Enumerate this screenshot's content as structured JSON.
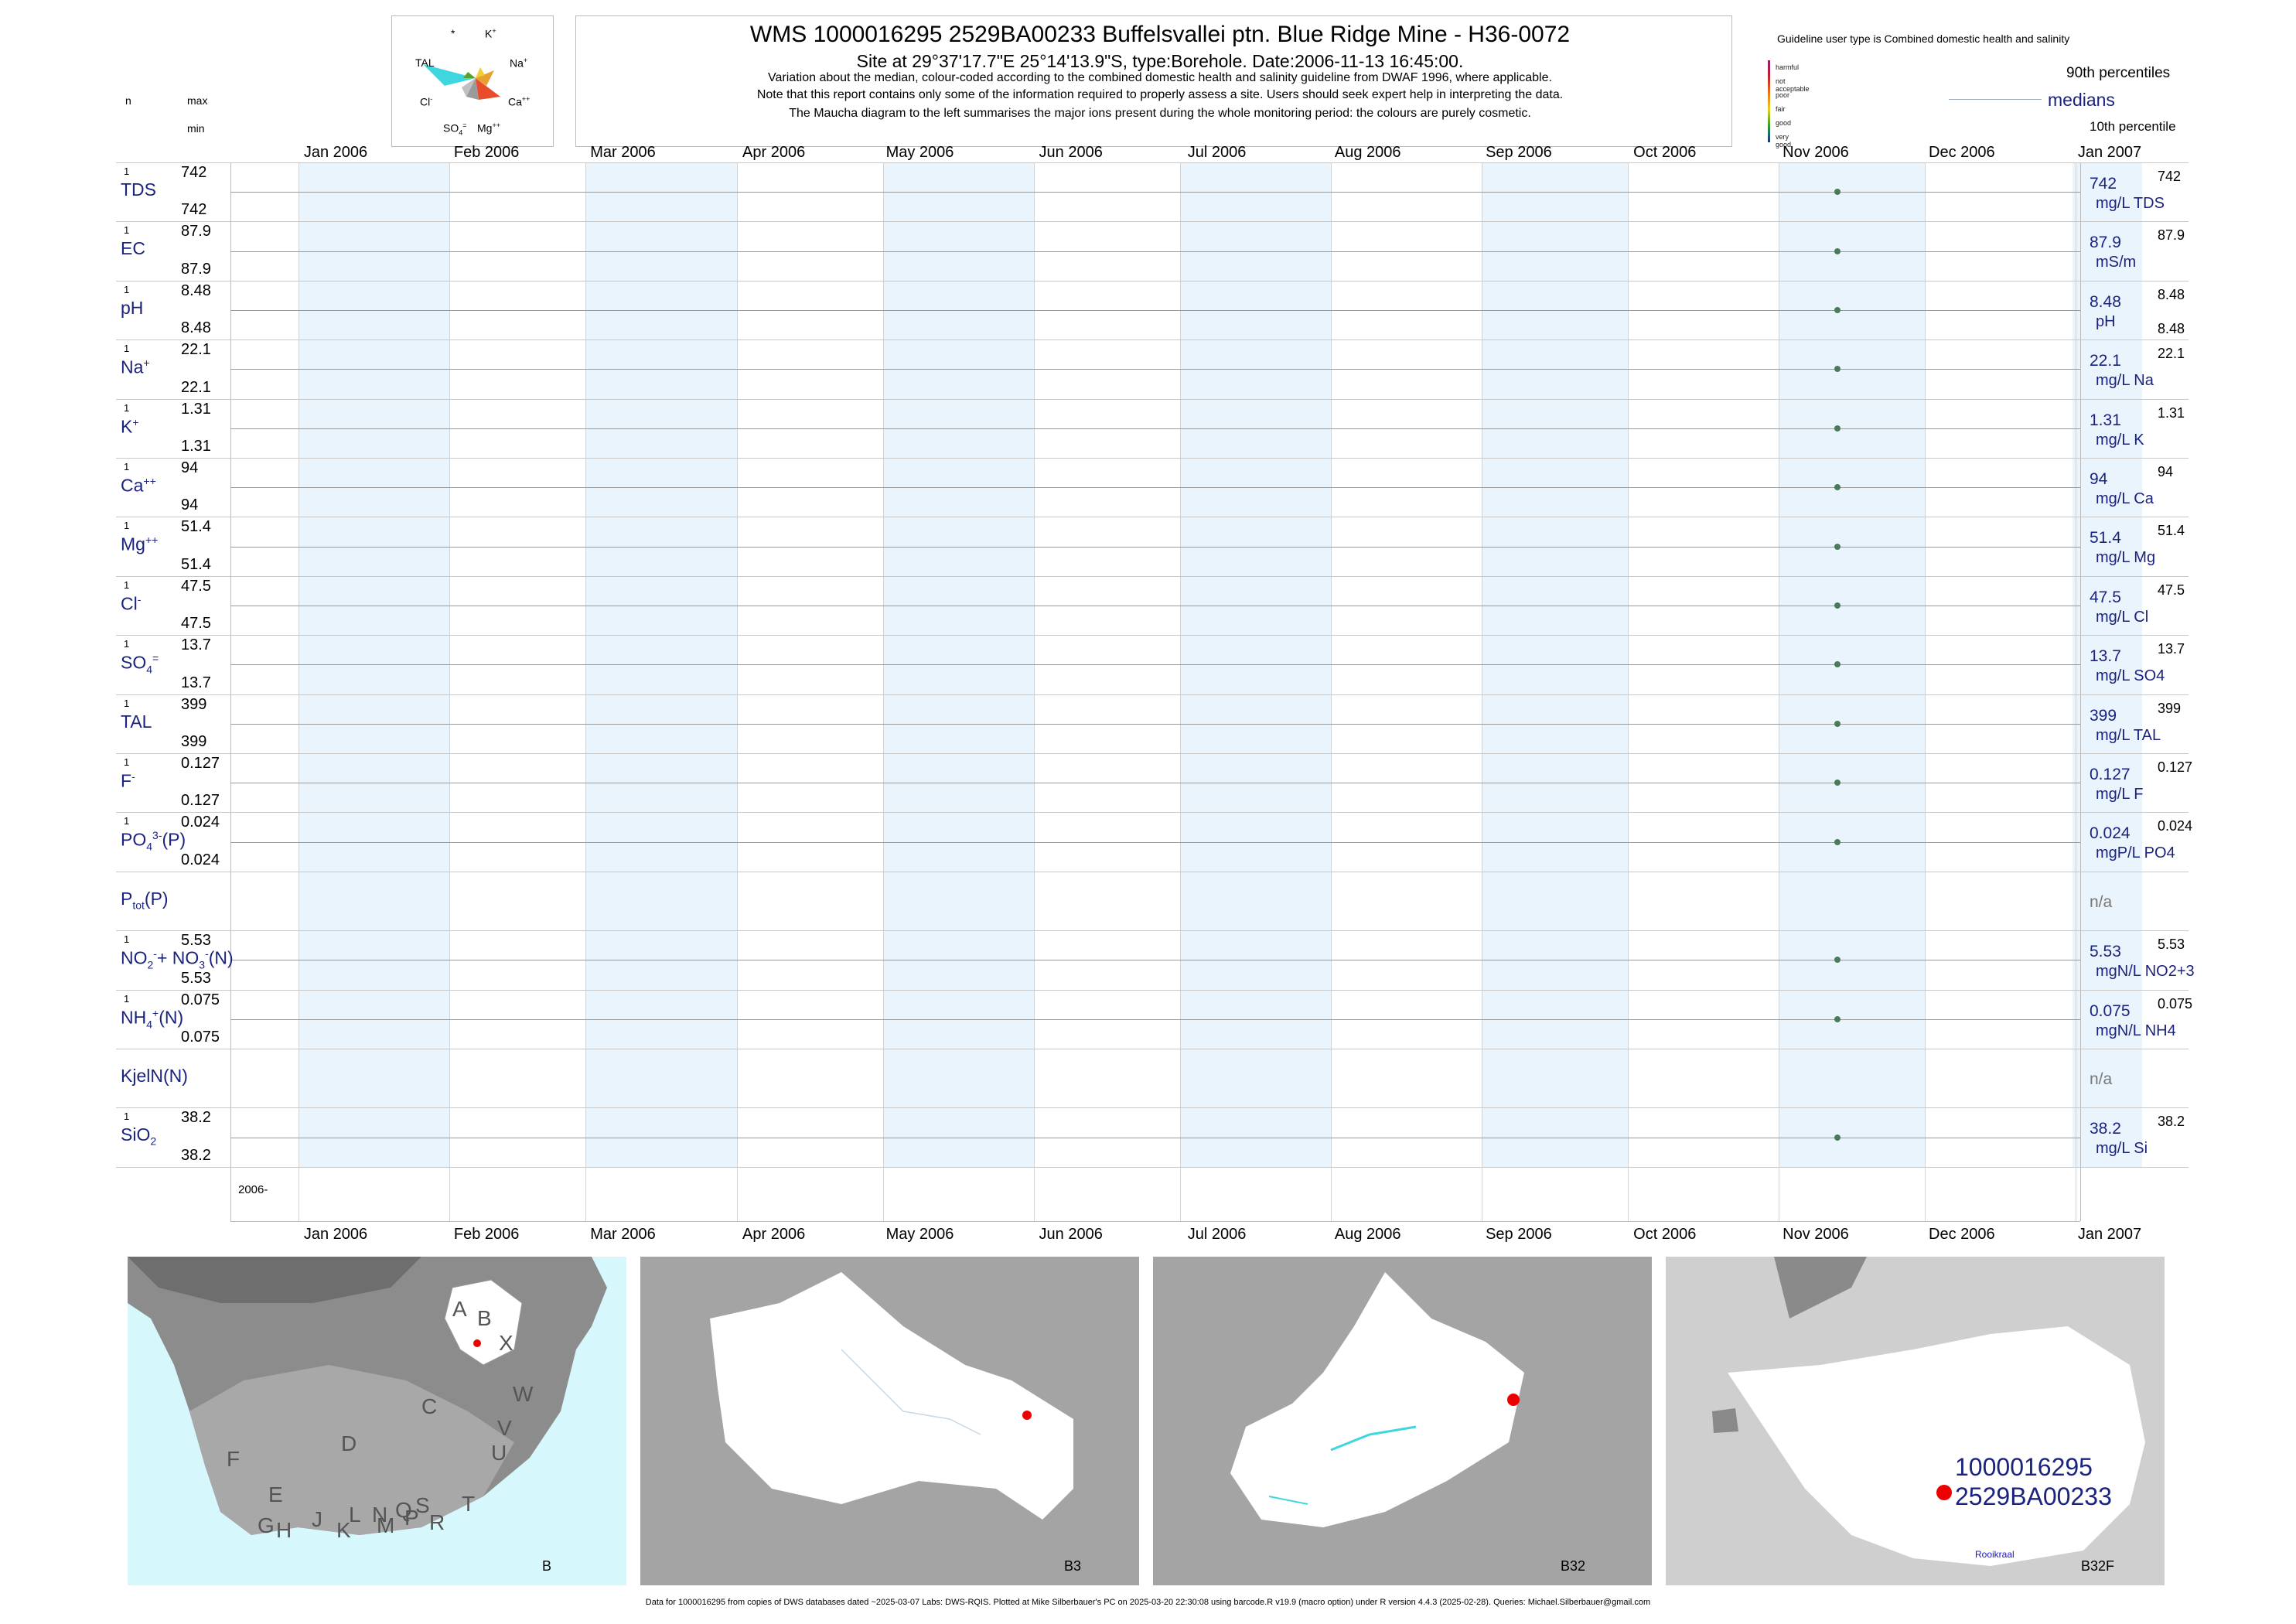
{
  "header": {
    "title": "WMS 1000016295 2529BA00233 Buffelsvallei ptn. Blue Ridge Mine - H36-0072",
    "site": "Site at 29°37'17.7\"E 25°14'13.9\"S, type:Borehole. Date:2006-11-13 16:45:00.",
    "line1": "Variation about the median,  colour-coded according to the combined domestic health and salinity guideline from DWAF 1996, where applicable.",
    "line2": "Note that this report contains only some of the information required to properly assess a site. Users should seek expert help in interpreting the data.",
    "line3": "The Maucha diagram to the left summarises the major ions present during the whole monitoring period: the colours are purely cosmetic."
  },
  "maucha": {
    "labels": {
      "star": "*",
      "k": "K",
      "tal": "TAL",
      "na": "Na",
      "cl": "Cl",
      "ca": "Ca",
      "so4": "SO",
      "mg": "Mg"
    },
    "colors": {
      "tal": "#3fd6e0",
      "na": "#e84c2b",
      "ca": "#c84c2a",
      "mg": "#9a9a9a",
      "so4": "#a0a0a0",
      "k": "#f0d030",
      "cl": "#58a030"
    }
  },
  "left_header": {
    "n": "n",
    "max": "max",
    "min": "min"
  },
  "guideline": {
    "title": "Guideline user type is Combined domestic health and salinity",
    "levels": [
      {
        "label": "harmful",
        "color": "#8e1c72"
      },
      {
        "label": "not acceptable",
        "color": "#c61c2c"
      },
      {
        "label": "poor",
        "color": "#e8741c"
      },
      {
        "label": "fair",
        "color": "#e8d01c"
      },
      {
        "label": "good",
        "color": "#2ca02c"
      },
      {
        "label": "very good",
        "color": "#1c2ca0"
      }
    ],
    "p90": "90th percentiles",
    "medians": "medians",
    "p10": "10th percentile"
  },
  "chart_data": {
    "type": "scatter",
    "x_axis": {
      "ticks": [
        "Jan 2006",
        "Feb 2006",
        "Mar 2006",
        "Apr 2006",
        "May 2006",
        "Jun 2006",
        "Jul 2006",
        "Aug 2006",
        "Sep 2006",
        "Oct 2006",
        "Nov 2006",
        "Dec 2006",
        "Jan 2007"
      ],
      "range": [
        "2006-01-01",
        "2007-01-01"
      ]
    },
    "sample_date": "2006-11-13",
    "series": [
      {
        "name": "TDS",
        "n": "1",
        "max": "742",
        "min": "742",
        "median": "742",
        "unit": "mg/L TDS",
        "value": 742
      },
      {
        "name": "EC",
        "n": "1",
        "max": "87.9",
        "min": "87.9",
        "median": "87.9",
        "unit": "mS/m",
        "value": 87.9
      },
      {
        "name": "pH",
        "n": "1",
        "max": "8.48",
        "min": "8.48",
        "median": "8.48",
        "unit": "pH",
        "value": 8.48,
        "p10": "8.48"
      },
      {
        "name": "Na",
        "n": "1",
        "max": "22.1",
        "min": "22.1",
        "median": "22.1",
        "unit": "mg/L Na",
        "value": 22.1
      },
      {
        "name": "K",
        "n": "1",
        "max": "1.31",
        "min": "1.31",
        "median": "1.31",
        "unit": "mg/L K",
        "value": 1.31
      },
      {
        "name": "Ca",
        "n": "1",
        "max": "94",
        "min": "94",
        "median": "94",
        "unit": "mg/L Ca",
        "value": 94
      },
      {
        "name": "Mg",
        "n": "1",
        "max": "51.4",
        "min": "51.4",
        "median": "51.4",
        "unit": "mg/L Mg",
        "value": 51.4
      },
      {
        "name": "Cl",
        "n": "1",
        "max": "47.5",
        "min": "47.5",
        "median": "47.5",
        "unit": "mg/L Cl",
        "value": 47.5
      },
      {
        "name": "SO4",
        "n": "1",
        "max": "13.7",
        "min": "13.7",
        "median": "13.7",
        "unit": "mg/L SO4",
        "value": 13.7
      },
      {
        "name": "TAL",
        "n": "1",
        "max": "399",
        "min": "399",
        "median": "399",
        "unit": "mg/L TAL",
        "value": 399
      },
      {
        "name": "F",
        "n": "1",
        "max": "0.127",
        "min": "0.127",
        "median": "0.127",
        "unit": "mg/L F",
        "value": 0.127
      },
      {
        "name": "PO4(P)",
        "n": "1",
        "max": "0.024",
        "min": "0.024",
        "median": "0.024",
        "unit": "mgP/L PO4",
        "value": 0.024
      },
      {
        "name": "Ptot(P)",
        "n": "",
        "max": "",
        "min": "",
        "median": "n/a",
        "unit": "",
        "value": null
      },
      {
        "name": "NO2+NO3(N)",
        "n": "1",
        "max": "5.53",
        "min": "5.53",
        "median": "5.53",
        "unit": "mgN/L NO2+3",
        "value": 5.53
      },
      {
        "name": "NH4(N)",
        "n": "1",
        "max": "0.075",
        "min": "0.075",
        "median": "0.075",
        "unit": "mgN/L NH4",
        "value": 0.075
      },
      {
        "name": "KjelN(N)",
        "n": "",
        "max": "",
        "min": "",
        "median": "n/a",
        "unit": "",
        "value": null
      },
      {
        "name": "SiO2",
        "n": "1",
        "max": "38.2",
        "min": "38.2",
        "median": "38.2",
        "unit": "mg/L Si",
        "value": 38.2
      }
    ]
  },
  "row_labels": {
    "tds": "TDS",
    "ec": "EC",
    "ph": "pH",
    "na": "Na",
    "k": "K",
    "ca": "Ca",
    "mg": "Mg",
    "cl": "Cl",
    "so4": "SO",
    "tal": "TAL",
    "f": "F",
    "po4": "PO",
    "po4_suffix": "(P)",
    "ptot": "P",
    "ptot_sub": "tot",
    "ptot_suffix": "(P)",
    "no": "NO",
    "no3": "+ NO",
    "no_suffix": "(N)",
    "nh4": "NH",
    "nh4_suffix": "(N)",
    "kjel": "KjelN(N)",
    "sio2": "SiO"
  },
  "bottom_year": "2006-",
  "maps": [
    {
      "label": "B",
      "letters": [
        "A",
        "B",
        "X",
        "W",
        "C",
        "V",
        "U",
        "D",
        "T",
        "F",
        "E",
        "L",
        "N",
        "Q",
        "S",
        "G",
        "H",
        "J",
        "K",
        "M",
        "P",
        "R"
      ]
    },
    {
      "label": "B3"
    },
    {
      "label": "B32"
    },
    {
      "label": "B32F",
      "site_id": "1000016295",
      "site_code": "2529BA00233",
      "river": "Rooikraal"
    }
  ],
  "footer": "Data for 1000016295 from copies of DWS databases dated ~2025-03-07 Labs: DWS-RQIS. Plotted at Mike Silberbauer's PC on 2025-03-20 22:30:08 using barcode.R v19.9 (macro option) under R version 4.4.3 (2025-02-28). Queries: Michael.Silberbauer@gmail.com"
}
